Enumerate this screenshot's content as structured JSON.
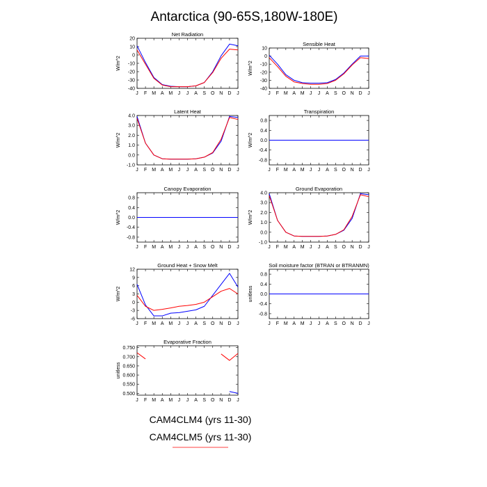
{
  "figure": {
    "title": "Antarctica (90-65S,180W-180E)"
  },
  "legend": {
    "entries": [
      {
        "label": "CAM4CLM4 (yrs 11-30)",
        "color": "#0000ff"
      },
      {
        "label": "CAM4CLM5 (yrs 11-30)",
        "color": "#ff0000"
      }
    ]
  },
  "chart_data": [
    {
      "type": "line",
      "title": "Net Radiation",
      "ylabel": "W/m^2",
      "x": [
        "J",
        "F",
        "M",
        "A",
        "M",
        "J",
        "J",
        "A",
        "S",
        "O",
        "N",
        "D",
        "J"
      ],
      "ylim": [
        -40,
        20
      ],
      "yticks": [
        20,
        10,
        0,
        -10,
        -20,
        -30,
        -40
      ],
      "tick_labels": [
        "20",
        "10",
        "0",
        "-10",
        "-20",
        "-30",
        "-40"
      ],
      "series": [
        {
          "color": "#0000ff",
          "values": [
            11,
            -9,
            -27,
            -35.5,
            -37.5,
            -38,
            -38,
            -37,
            -33,
            -20,
            -1,
            13,
            11
          ]
        },
        {
          "color": "#ff0000",
          "values": [
            6,
            -11,
            -28,
            -36,
            -38,
            -38,
            -38,
            -37,
            -33,
            -21,
            -4,
            7,
            6
          ]
        }
      ]
    },
    {
      "type": "line",
      "title": "Sensible Heat",
      "ylabel": "W/m^2",
      "x": [
        "J",
        "F",
        "M",
        "A",
        "M",
        "J",
        "J",
        "A",
        "S",
        "O",
        "N",
        "D",
        "J"
      ],
      "ylim": [
        -40,
        10
      ],
      "yticks": [
        10,
        0,
        -10,
        -20,
        -30,
        -40
      ],
      "tick_labels": [
        "10",
        "0",
        "-10",
        "-20",
        "-30",
        "-40"
      ],
      "series": [
        {
          "color": "#0000ff",
          "values": [
            1,
            -10,
            -23,
            -30,
            -33,
            -33.5,
            -33.5,
            -33,
            -29,
            -21,
            -10,
            0,
            0
          ]
        },
        {
          "color": "#ff0000",
          "values": [
            -2,
            -13,
            -25,
            -32,
            -34,
            -35,
            -35,
            -34,
            -30,
            -22,
            -11,
            -2,
            -3
          ]
        }
      ]
    },
    {
      "type": "line",
      "title": "Latent Heat",
      "ylabel": "W/m^2",
      "x": [
        "J",
        "F",
        "M",
        "A",
        "M",
        "J",
        "J",
        "A",
        "S",
        "O",
        "N",
        "D",
        "J"
      ],
      "ylim": [
        -1.0,
        4.0
      ],
      "yticks": [
        4.0,
        3.0,
        2.0,
        1.0,
        0.0,
        -1.0
      ],
      "tick_labels": [
        "4.0",
        "3.0",
        "2.0",
        "1.0",
        "0.0",
        "-1.0"
      ],
      "series": [
        {
          "color": "#0000ff",
          "values": [
            3.9,
            1.2,
            0.0,
            -0.38,
            -0.42,
            -0.42,
            -0.42,
            -0.38,
            -0.22,
            0.2,
            1.4,
            3.9,
            3.8
          ]
        },
        {
          "color": "#ff0000",
          "values": [
            3.7,
            1.2,
            0.0,
            -0.38,
            -0.42,
            -0.42,
            -0.42,
            -0.38,
            -0.22,
            0.25,
            1.6,
            3.8,
            3.6
          ]
        }
      ]
    },
    {
      "type": "line",
      "title": "Transpiration",
      "ylabel": "W/m^2",
      "x": [
        "J",
        "F",
        "M",
        "A",
        "M",
        "J",
        "J",
        "A",
        "S",
        "O",
        "N",
        "D",
        "J"
      ],
      "ylim": [
        -1.0,
        1.0
      ],
      "yticks": [
        0.8,
        0.4,
        0.0,
        -0.4,
        -0.8
      ],
      "tick_labels": [
        "0.8",
        "0.4",
        "0.0",
        "-0.4",
        "-0.8"
      ],
      "series": [
        {
          "color": "#ff0000",
          "values": [
            0,
            0,
            0,
            0,
            0,
            0,
            0,
            0,
            0,
            0,
            0,
            0,
            0
          ]
        },
        {
          "color": "#0000ff",
          "values": [
            0,
            0,
            0,
            0,
            0,
            0,
            0,
            0,
            0,
            0,
            0,
            0,
            0
          ]
        }
      ]
    },
    {
      "type": "line",
      "title": "Canopy Evaporation",
      "ylabel": "W/m^2",
      "x": [
        "J",
        "F",
        "M",
        "A",
        "M",
        "J",
        "J",
        "A",
        "S",
        "O",
        "N",
        "D",
        "J"
      ],
      "ylim": [
        -1.0,
        1.0
      ],
      "yticks": [
        0.8,
        0.4,
        0.0,
        -0.4,
        -0.8
      ],
      "tick_labels": [
        "0.8",
        "0.4",
        "0.0",
        "-0.4",
        "-0.8"
      ],
      "series": [
        {
          "color": "#ff0000",
          "values": [
            0,
            0,
            0,
            0,
            0,
            0,
            0,
            0,
            0,
            0,
            0,
            0,
            0
          ]
        },
        {
          "color": "#0000ff",
          "values": [
            0,
            0,
            0,
            0,
            0,
            0,
            0,
            0,
            0,
            0,
            0,
            0,
            0
          ]
        }
      ]
    },
    {
      "type": "line",
      "title": "Ground Evaporation",
      "ylabel": "W/m^2",
      "x": [
        "J",
        "F",
        "M",
        "A",
        "M",
        "J",
        "J",
        "A",
        "S",
        "O",
        "N",
        "D",
        "J"
      ],
      "ylim": [
        -1.0,
        4.0
      ],
      "yticks": [
        4.0,
        3.0,
        2.0,
        1.0,
        0.0,
        -1.0
      ],
      "tick_labels": [
        "4.0",
        "3.0",
        "2.0",
        "1.0",
        "0.0",
        "-1.0"
      ],
      "series": [
        {
          "color": "#0000ff",
          "values": [
            3.9,
            1.2,
            0.0,
            -0.38,
            -0.42,
            -0.42,
            -0.42,
            -0.38,
            -0.22,
            0.2,
            1.4,
            3.9,
            3.8
          ]
        },
        {
          "color": "#ff0000",
          "values": [
            3.7,
            1.2,
            0.0,
            -0.38,
            -0.42,
            -0.42,
            -0.42,
            -0.38,
            -0.22,
            0.25,
            1.6,
            3.8,
            3.6
          ]
        }
      ]
    },
    {
      "type": "line",
      "title": "Ground Heat + Snow Melt",
      "ylabel": "W/m^2",
      "x": [
        "J",
        "F",
        "M",
        "A",
        "M",
        "J",
        "J",
        "A",
        "S",
        "O",
        "N",
        "D",
        "J"
      ],
      "ylim": [
        -6,
        12
      ],
      "yticks": [
        12,
        9,
        6,
        3,
        0,
        -3,
        -6
      ],
      "tick_labels": [
        "12",
        "9",
        "6",
        "3",
        "0",
        "-3",
        "-6"
      ],
      "series": [
        {
          "color": "#0000ff",
          "values": [
            6.5,
            -1,
            -5,
            -5,
            -4,
            -3.8,
            -3.3,
            -2.8,
            -1.5,
            2.5,
            6.5,
            10.5,
            5.5
          ]
        },
        {
          "color": "#ff0000",
          "values": [
            2.5,
            -1.5,
            -3,
            -2.6,
            -2.1,
            -1.5,
            -1.2,
            -0.8,
            0,
            2,
            4,
            5,
            3
          ]
        }
      ]
    },
    {
      "type": "line",
      "title": "Soil moisture factor (BTRAN or BTRANMN)",
      "ylabel": "unitless",
      "x": [
        "J",
        "F",
        "M",
        "A",
        "M",
        "J",
        "J",
        "A",
        "S",
        "O",
        "N",
        "D",
        "J"
      ],
      "ylim": [
        -1.0,
        1.0
      ],
      "yticks": [
        0.8,
        0.4,
        0.0,
        -0.4,
        -0.8
      ],
      "tick_labels": [
        "0.8",
        "0.4",
        "0.0",
        "-0.4",
        "-0.8"
      ],
      "series": [
        {
          "color": "#ff0000",
          "values": [
            0,
            0,
            0,
            0,
            0,
            0,
            0,
            0,
            0,
            0,
            0,
            0,
            0
          ]
        },
        {
          "color": "#0000ff",
          "values": [
            0,
            0,
            0,
            0,
            0,
            0,
            0,
            0,
            0,
            0,
            0,
            0,
            0
          ]
        }
      ]
    },
    {
      "type": "line",
      "title": "Evaporative Fraction",
      "ylabel": "unitless",
      "x": [
        "J",
        "F",
        "M",
        "A",
        "M",
        "J",
        "J",
        "A",
        "S",
        "O",
        "N",
        "D",
        "J"
      ],
      "ylim": [
        0.49,
        0.76
      ],
      "yticks": [
        0.75,
        0.7,
        0.65,
        0.6,
        0.55,
        0.5
      ],
      "tick_labels": [
        "0.750",
        "0.700",
        "0.650",
        "0.600",
        "0.550",
        "0.500"
      ],
      "series": [
        {
          "color": "#ff0000",
          "values": [
            0.722,
            0.688,
            null,
            null,
            null,
            null,
            null,
            null,
            null,
            null,
            0.715,
            0.68,
            0.718
          ]
        },
        {
          "color": "#0000ff",
          "values": [
            null,
            null,
            null,
            null,
            null,
            null,
            null,
            null,
            null,
            null,
            null,
            0.51,
            0.5
          ]
        }
      ]
    }
  ]
}
